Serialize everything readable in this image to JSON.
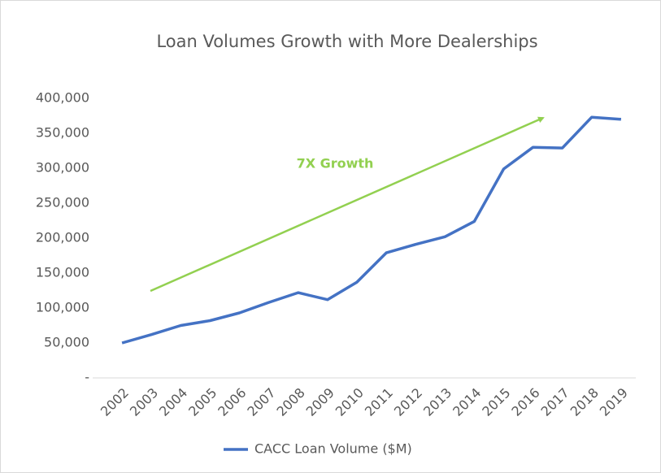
{
  "chart_data": {
    "type": "line",
    "title": "Loan Volumes Growth with More Dealerships",
    "annotation": "7X Growth",
    "categories": [
      "2002",
      "2003",
      "2004",
      "2005",
      "2006",
      "2007",
      "2008",
      "2009",
      "2010",
      "2011",
      "2012",
      "2013",
      "2014",
      "2015",
      "2016",
      "2017",
      "2018",
      "2019"
    ],
    "series": [
      {
        "name": "CACC Loan Volume ($M)",
        "color": "#4472c4",
        "values": [
          50000,
          62000,
          75000,
          82000,
          93000,
          108000,
          122000,
          112000,
          137000,
          179000,
          191000,
          202000,
          224000,
          299000,
          330000,
          329000,
          373000,
          370000
        ]
      }
    ],
    "ylim": [
      0,
      400000
    ],
    "yticks": [
      {
        "value": 0,
        "label": "-"
      },
      {
        "value": 50000,
        "label": "50,000"
      },
      {
        "value": 100000,
        "label": "100,000"
      },
      {
        "value": 150000,
        "label": "150,000"
      },
      {
        "value": 200000,
        "label": "200,000"
      },
      {
        "value": 250000,
        "label": "250,000"
      },
      {
        "value": 300000,
        "label": "300,000"
      },
      {
        "value": 350000,
        "label": "350,000"
      },
      {
        "value": 400000,
        "label": "400,000"
      }
    ],
    "grid": false
  }
}
